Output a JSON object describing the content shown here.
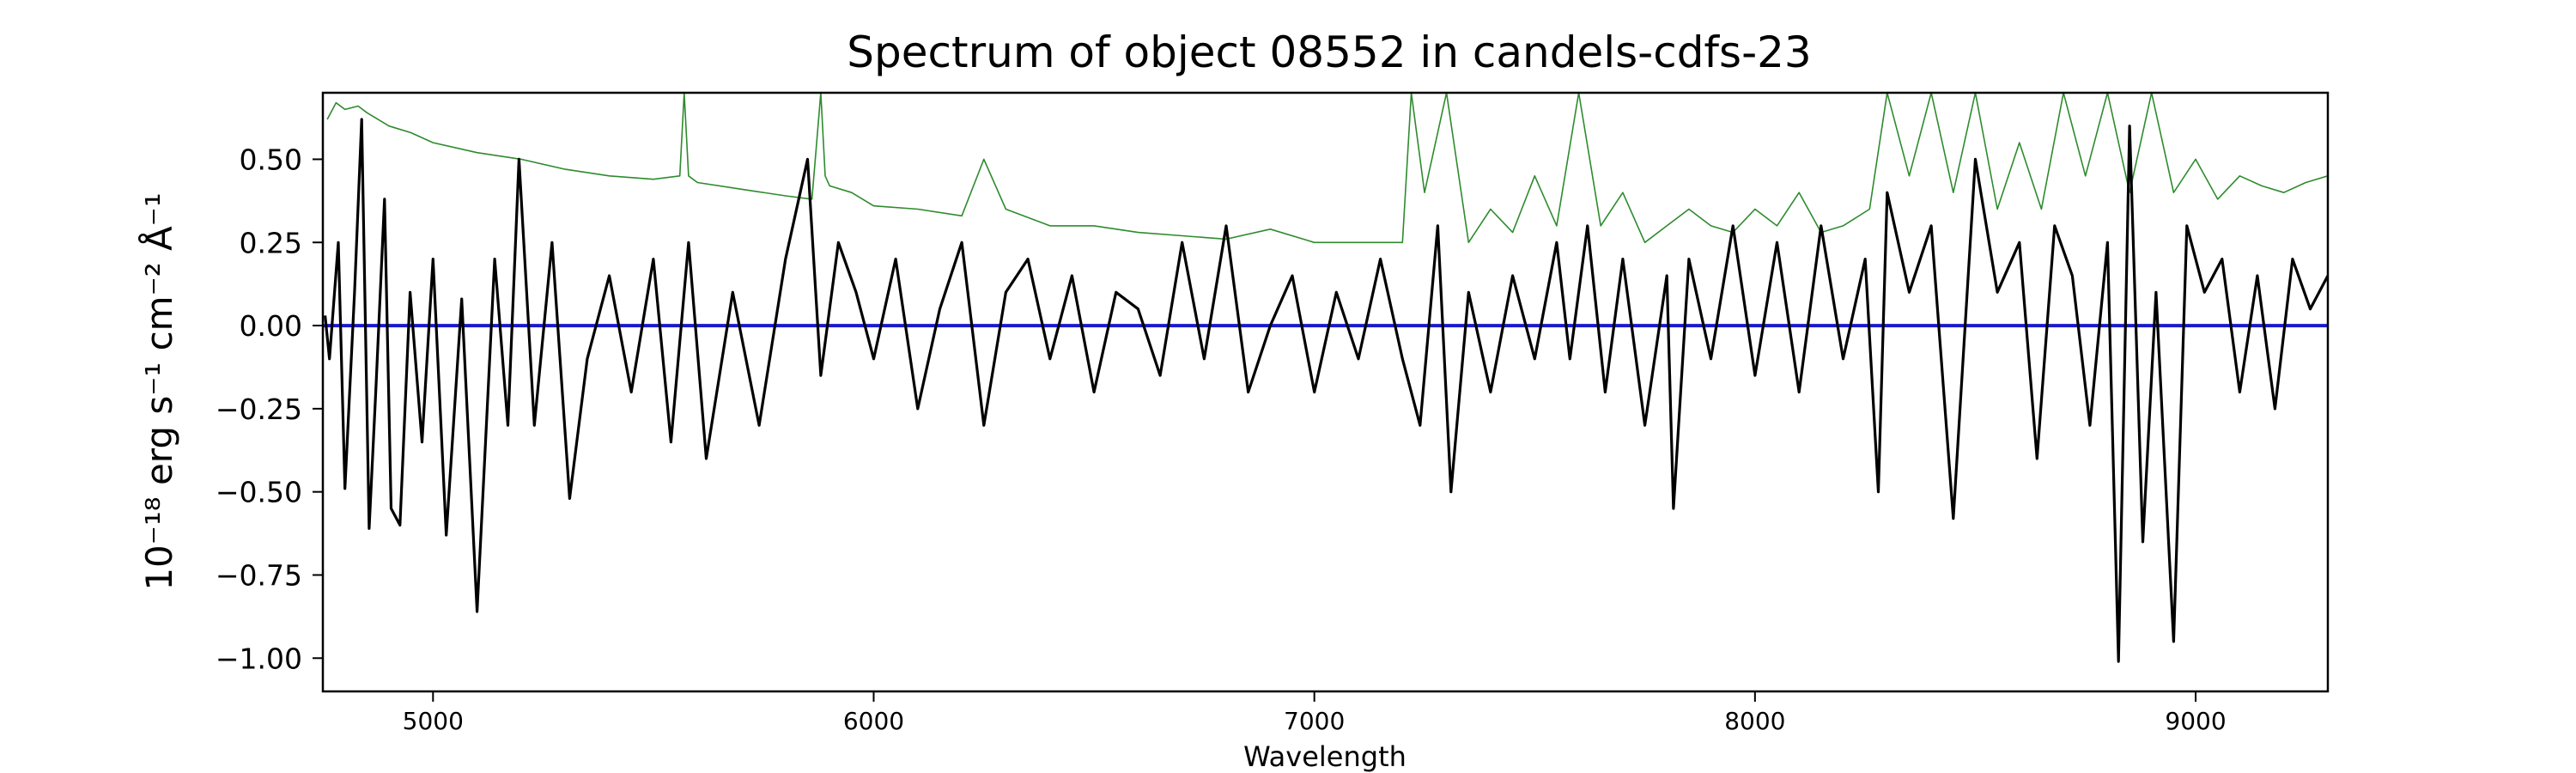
{
  "chart_data": {
    "type": "line",
    "title": "Spectrum of object 08552 in candels-cdfs-23",
    "xlabel": "Wavelength",
    "ylabel": "10⁻¹⁸ erg s⁻¹ cm⁻² Å⁻¹",
    "xlim": [
      4750,
      9300
    ],
    "ylim": [
      -1.1,
      0.7
    ],
    "xticks": [
      5000,
      6000,
      7000,
      8000,
      9000
    ],
    "xtick_labels": [
      "5000",
      "6000",
      "7000",
      "8000",
      "9000"
    ],
    "yticks": [
      0.5,
      0.25,
      0.0,
      -0.25,
      -0.5,
      -0.75,
      -1.0
    ],
    "ytick_labels": [
      "0.50",
      "0.25",
      "0.00",
      "−0.25",
      "−0.50",
      "−0.75",
      "−1.00"
    ],
    "grid": false,
    "series": [
      {
        "role": "flux",
        "color": "#000000",
        "x": [
          4755,
          4765,
          4785,
          4800,
          4822,
          4838,
          4855,
          4870,
          4890,
          4905,
          4925,
          4948,
          4975,
          5000,
          5030,
          5065,
          5100,
          5140,
          5170,
          5195,
          5230,
          5270,
          5310,
          5350,
          5400,
          5450,
          5500,
          5540,
          5580,
          5620,
          5680,
          5740,
          5800,
          5850,
          5880,
          5920,
          5960,
          6000,
          6050,
          6100,
          6150,
          6200,
          6250,
          6300,
          6350,
          6400,
          6450,
          6500,
          6550,
          6600,
          6650,
          6700,
          6750,
          6800,
          6850,
          6900,
          6950,
          7000,
          7050,
          7100,
          7150,
          7200,
          7240,
          7280,
          7310,
          7350,
          7400,
          7450,
          7500,
          7550,
          7580,
          7620,
          7660,
          7700,
          7750,
          7800,
          7815,
          7850,
          7900,
          7950,
          8000,
          8050,
          8100,
          8150,
          8200,
          8250,
          8280,
          8300,
          8350,
          8400,
          8450,
          8500,
          8550,
          8600,
          8640,
          8680,
          8720,
          8760,
          8800,
          8825,
          8850,
          8880,
          8910,
          8950,
          8980,
          9020,
          9060,
          9100,
          9140,
          9180,
          9220,
          9260,
          9300
        ],
        "y": [
          0.03,
          -0.1,
          0.25,
          -0.49,
          0.1,
          0.62,
          -0.61,
          -0.2,
          0.38,
          -0.55,
          -0.6,
          0.1,
          -0.35,
          0.2,
          -0.63,
          0.08,
          -0.86,
          0.2,
          -0.3,
          0.5,
          -0.3,
          0.25,
          -0.52,
          -0.1,
          0.15,
          -0.2,
          0.2,
          -0.35,
          0.25,
          -0.4,
          0.1,
          -0.3,
          0.2,
          0.5,
          -0.15,
          0.25,
          0.1,
          -0.1,
          0.2,
          -0.25,
          0.05,
          0.25,
          -0.3,
          0.1,
          0.2,
          -0.1,
          0.15,
          -0.2,
          0.1,
          0.05,
          -0.15,
          0.25,
          -0.1,
          0.3,
          -0.2,
          0.0,
          0.15,
          -0.2,
          0.1,
          -0.1,
          0.2,
          -0.1,
          -0.3,
          0.3,
          -0.5,
          0.1,
          -0.2,
          0.15,
          -0.1,
          0.25,
          -0.1,
          0.3,
          -0.2,
          0.2,
          -0.3,
          0.15,
          -0.55,
          0.2,
          -0.1,
          0.3,
          -0.15,
          0.25,
          -0.2,
          0.3,
          -0.1,
          0.2,
          -0.5,
          0.4,
          0.1,
          0.3,
          -0.58,
          0.5,
          0.1,
          0.25,
          -0.4,
          0.3,
          0.15,
          -0.3,
          0.25,
          -1.01,
          0.6,
          -0.65,
          0.1,
          -0.95,
          0.3,
          0.1,
          0.2,
          -0.2,
          0.15,
          -0.25,
          0.2,
          0.05,
          0.15
        ]
      },
      {
        "role": "error",
        "color": "#2e8b2e",
        "x": [
          4760,
          4780,
          4800,
          4830,
          4850,
          4900,
          4950,
          5000,
          5100,
          5200,
          5300,
          5400,
          5500,
          5560,
          5570,
          5580,
          5600,
          5700,
          5800,
          5860,
          5880,
          5890,
          5900,
          5950,
          6000,
          6100,
          6200,
          6250,
          6300,
          6400,
          6500,
          6600,
          6700,
          6800,
          6900,
          7000,
          7100,
          7200,
          7220,
          7250,
          7300,
          7350,
          7400,
          7450,
          7500,
          7550,
          7600,
          7650,
          7700,
          7750,
          7800,
          7850,
          7900,
          7950,
          8000,
          8050,
          8100,
          8150,
          8200,
          8260,
          8300,
          8350,
          8400,
          8450,
          8500,
          8550,
          8600,
          8650,
          8700,
          8750,
          8800,
          8850,
          8900,
          8950,
          9000,
          9050,
          9100,
          9150,
          9200,
          9250,
          9300
        ],
        "y": [
          0.62,
          0.67,
          0.65,
          0.66,
          0.64,
          0.6,
          0.58,
          0.55,
          0.52,
          0.5,
          0.47,
          0.45,
          0.44,
          0.45,
          0.7,
          0.45,
          0.43,
          0.41,
          0.39,
          0.38,
          0.7,
          0.45,
          0.42,
          0.4,
          0.36,
          0.35,
          0.33,
          0.5,
          0.35,
          0.3,
          0.3,
          0.28,
          0.27,
          0.26,
          0.29,
          0.25,
          0.25,
          0.25,
          0.7,
          0.4,
          0.7,
          0.25,
          0.35,
          0.28,
          0.45,
          0.3,
          0.7,
          0.3,
          0.4,
          0.25,
          0.3,
          0.35,
          0.3,
          0.28,
          0.35,
          0.3,
          0.4,
          0.28,
          0.3,
          0.35,
          0.7,
          0.45,
          0.7,
          0.4,
          0.7,
          0.35,
          0.55,
          0.35,
          0.7,
          0.45,
          0.7,
          0.4,
          0.7,
          0.4,
          0.5,
          0.38,
          0.45,
          0.42,
          0.4,
          0.43,
          0.45
        ]
      },
      {
        "role": "zero",
        "color": "#1a1acc",
        "x": [
          4750,
          9300
        ],
        "y": [
          0.0,
          0.0
        ]
      }
    ]
  }
}
